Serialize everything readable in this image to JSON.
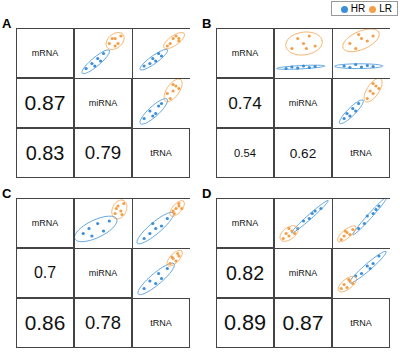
{
  "chart_data": [
    {
      "type": "scatter_matrix",
      "title": "A",
      "variables": [
        "mRNA",
        "miRNA",
        "tRNA"
      ],
      "tick_labels": false,
      "correlations": [
        {
          "x": "mRNA",
          "y": "miRNA",
          "value": 0.87
        },
        {
          "x": "mRNA",
          "y": "tRNA",
          "value": 0.83
        },
        {
          "x": "miRNA",
          "y": "tRNA",
          "value": 0.79
        }
      ],
      "plots": [
        {
          "x": "miRNA",
          "y": "mRNA",
          "xlim": [
            0,
            10
          ],
          "ylim": [
            0,
            10
          ],
          "series": [
            {
              "name": "HR",
              "color": "#3b8fd8",
              "points": [
                [
                  2,
                  2
                ],
                [
                  3,
                  3
                ],
                [
                  3.5,
                  2.5
                ],
                [
                  4,
                  4
                ],
                [
                  4.5,
                  3.5
                ],
                [
                  5,
                  5
                ]
              ]
            },
            {
              "name": "LR",
              "color": "#f4a048",
              "points": [
                [
                  6,
                  7
                ],
                [
                  7,
                  8
                ],
                [
                  7.5,
                  7
                ],
                [
                  8,
                  8.5
                ],
                [
                  6.5,
                  8
                ],
                [
                  7,
                  6.5
                ]
              ]
            }
          ]
        },
        {
          "x": "tRNA",
          "y": "mRNA",
          "xlim": [
            0,
            10
          ],
          "ylim": [
            0,
            10
          ],
          "series": [
            {
              "name": "HR",
              "color": "#3b8fd8",
              "points": [
                [
                  2,
                  2.5
                ],
                [
                  3,
                  3
                ],
                [
                  3.5,
                  4
                ],
                [
                  4,
                  3.5
                ],
                [
                  5,
                  4.5
                ],
                [
                  4.5,
                  5
                ]
              ]
            },
            {
              "name": "LR",
              "color": "#f4a048",
              "points": [
                [
                  6.5,
                  7
                ],
                [
                  7,
                  8
                ],
                [
                  8,
                  7.5
                ],
                [
                  7.5,
                  8.5
                ],
                [
                  6,
                  6.5
                ],
                [
                  8,
                  8
                ]
              ]
            }
          ]
        },
        {
          "x": "tRNA",
          "y": "miRNA",
          "xlim": [
            0,
            10
          ],
          "ylim": [
            0,
            10
          ],
          "series": [
            {
              "name": "HR",
              "color": "#3b8fd8",
              "points": [
                [
                  2,
                  2
                ],
                [
                  3,
                  3.5
                ],
                [
                  4,
                  3
                ],
                [
                  4.5,
                  4.5
                ],
                [
                  5,
                  5
                ],
                [
                  3.5,
                  2.5
                ]
              ]
            },
            {
              "name": "LR",
              "color": "#f4a048",
              "points": [
                [
                  6,
                  7
                ],
                [
                  7,
                  7.5
                ],
                [
                  7.5,
                  8.5
                ],
                [
                  8,
                  8
                ],
                [
                  6.5,
                  6
                ],
                [
                  7,
                  8.8
                ]
              ]
            }
          ]
        }
      ]
    },
    {
      "type": "scatter_matrix",
      "title": "B",
      "variables": [
        "mRNA",
        "miRNA",
        "tRNA"
      ],
      "tick_labels": false,
      "legend": "top-right",
      "correlations": [
        {
          "x": "mRNA",
          "y": "miRNA",
          "value": 0.74
        },
        {
          "x": "mRNA",
          "y": "tRNA",
          "value": 0.54
        },
        {
          "x": "miRNA",
          "y": "tRNA",
          "value": 0.62
        }
      ],
      "plots": [
        {
          "x": "miRNA",
          "y": "mRNA",
          "xlim": [
            0,
            10
          ],
          "ylim": [
            0,
            10
          ],
          "series": [
            {
              "name": "HR",
              "color": "#3b8fd8",
              "points": [
                [
                  2,
                  2
                ],
                [
                  3,
                  2.3
                ],
                [
                  4,
                  2.1
                ],
                [
                  5,
                  2.5
                ],
                [
                  6,
                  2.2
                ],
                [
                  7,
                  2.4
                ]
              ]
            },
            {
              "name": "LR",
              "color": "#f4a048",
              "points": [
                [
                  3,
                  6
                ],
                [
                  4,
                  8
                ],
                [
                  5,
                  7
                ],
                [
                  6,
                  8.5
                ],
                [
                  7,
                  6.5
                ],
                [
                  5.5,
                  6
                ]
              ]
            }
          ]
        },
        {
          "x": "tRNA",
          "y": "mRNA",
          "xlim": [
            0,
            10
          ],
          "ylim": [
            0,
            10
          ],
          "series": [
            {
              "name": "HR",
              "color": "#3b8fd8",
              "points": [
                [
                  2,
                  2.5
                ],
                [
                  3,
                  2.2
                ],
                [
                  4,
                  2.8
                ],
                [
                  5,
                  2.3
                ],
                [
                  6,
                  2.6
                ],
                [
                  7,
                  2.4
                ]
              ]
            },
            {
              "name": "LR",
              "color": "#f4a048",
              "points": [
                [
                  3,
                  7
                ],
                [
                  4,
                  6
                ],
                [
                  5,
                  8
                ],
                [
                  6,
                  7.5
                ],
                [
                  7,
                  8.5
                ],
                [
                  4.5,
                  8.8
                ]
              ]
            }
          ]
        },
        {
          "x": "tRNA",
          "y": "miRNA",
          "xlim": [
            0,
            10
          ],
          "ylim": [
            0,
            10
          ],
          "series": [
            {
              "name": "HR",
              "color": "#3b8fd8",
              "points": [
                [
                  2,
                  2
                ],
                [
                  2.5,
                  3
                ],
                [
                  3,
                  2.5
                ],
                [
                  3.5,
                  4
                ],
                [
                  4,
                  3.5
                ],
                [
                  4.5,
                  5
                ]
              ]
            },
            {
              "name": "LR",
              "color": "#f4a048",
              "points": [
                [
                  6,
                  6
                ],
                [
                  6.5,
                  7.5
                ],
                [
                  7,
                  7
                ],
                [
                  7.5,
                  8.5
                ],
                [
                  8,
                  8
                ],
                [
                  7,
                  9
                ]
              ]
            }
          ]
        }
      ]
    },
    {
      "type": "scatter_matrix",
      "title": "C",
      "variables": [
        "mRNA",
        "miRNA",
        "tRNA"
      ],
      "tick_labels": false,
      "correlations": [
        {
          "x": "mRNA",
          "y": "miRNA",
          "value": 0.7
        },
        {
          "x": "mRNA",
          "y": "tRNA",
          "value": 0.86
        },
        {
          "x": "miRNA",
          "y": "tRNA",
          "value": 0.78
        }
      ],
      "plots": [
        {
          "x": "miRNA",
          "y": "mRNA",
          "xlim": [
            0,
            10
          ],
          "ylim": [
            0,
            10
          ],
          "series": [
            {
              "name": "HR",
              "color": "#3b8fd8",
              "points": [
                [
                  1.5,
                  3
                ],
                [
                  2.5,
                  4
                ],
                [
                  3,
                  2.5
                ],
                [
                  4,
                  5
                ],
                [
                  5,
                  3.5
                ],
                [
                  6,
                  5.5
                ]
              ]
            },
            {
              "name": "LR",
              "color": "#f4a048",
              "points": [
                [
                  7,
                  7
                ],
                [
                  7.5,
                  8.5
                ],
                [
                  8,
                  7.5
                ],
                [
                  8.5,
                  9
                ],
                [
                  7.2,
                  8
                ],
                [
                  8.2,
                  6.8
                ]
              ]
            }
          ]
        },
        {
          "x": "tRNA",
          "y": "mRNA",
          "xlim": [
            0,
            10
          ],
          "ylim": [
            0,
            10
          ],
          "series": [
            {
              "name": "HR",
              "color": "#3b8fd8",
              "points": [
                [
                  2,
                  2
                ],
                [
                  3,
                  3
                ],
                [
                  4,
                  4
                ],
                [
                  5,
                  4.5
                ],
                [
                  3.5,
                  5
                ],
                [
                  6,
                  6
                ]
              ]
            },
            {
              "name": "LR",
              "color": "#f4a048",
              "points": [
                [
                  7,
                  7.5
                ],
                [
                  7.5,
                  8
                ],
                [
                  8,
                  8.5
                ],
                [
                  8.5,
                  8
                ],
                [
                  7.2,
                  7
                ],
                [
                  8,
                  9
                ]
              ]
            }
          ]
        },
        {
          "x": "tRNA",
          "y": "miRNA",
          "xlim": [
            0,
            10
          ],
          "ylim": [
            0,
            10
          ],
          "series": [
            {
              "name": "HR",
              "color": "#3b8fd8",
              "points": [
                [
                  2,
                  2
                ],
                [
                  3,
                  3.5
                ],
                [
                  4,
                  3
                ],
                [
                  4.5,
                  5
                ],
                [
                  5,
                  4
                ],
                [
                  6,
                  6
                ]
              ]
            },
            {
              "name": "LR",
              "color": "#f4a048",
              "points": [
                [
                  6.5,
                  7
                ],
                [
                  7,
                  8
                ],
                [
                  7.5,
                  7.5
                ],
                [
                  8,
                  8.5
                ],
                [
                  6.8,
                  8.3
                ],
                [
                  7.8,
                  9
                ]
              ]
            }
          ]
        }
      ]
    },
    {
      "type": "scatter_matrix",
      "title": "D",
      "variables": [
        "mRNA",
        "miRNA",
        "tRNA"
      ],
      "tick_labels": false,
      "correlations": [
        {
          "x": "mRNA",
          "y": "miRNA",
          "value": 0.82
        },
        {
          "x": "mRNA",
          "y": "tRNA",
          "value": 0.89
        },
        {
          "x": "miRNA",
          "y": "tRNA",
          "value": 0.87
        }
      ],
      "plots": [
        {
          "x": "miRNA",
          "y": "mRNA",
          "xlim": [
            0,
            10
          ],
          "ylim": [
            0,
            10
          ],
          "series": [
            {
              "name": "HR",
              "color": "#3b8fd8",
              "points": [
                [
                  4,
                  4
                ],
                [
                  5,
                  5.5
                ],
                [
                  6,
                  6
                ],
                [
                  7,
                  7.5
                ],
                [
                  8,
                  8
                ],
                [
                  6.5,
                  7
                ]
              ]
            },
            {
              "name": "LR",
              "color": "#f4a048",
              "points": [
                [
                  1.5,
                  2
                ],
                [
                  2,
                  3
                ],
                [
                  2.5,
                  2.5
                ],
                [
                  3,
                  3.5
                ],
                [
                  3.5,
                  3
                ],
                [
                  2.5,
                  4
                ]
              ]
            }
          ]
        },
        {
          "x": "tRNA",
          "y": "mRNA",
          "xlim": [
            0,
            10
          ],
          "ylim": [
            0,
            10
          ],
          "series": [
            {
              "name": "HR",
              "color": "#3b8fd8",
              "points": [
                [
                  4.5,
                  4
                ],
                [
                  5.5,
                  5
                ],
                [
                  6,
                  6.5
                ],
                [
                  7,
                  7
                ],
                [
                  8,
                  8.5
                ],
                [
                  7.5,
                  7.8
                ]
              ]
            },
            {
              "name": "LR",
              "color": "#f4a048",
              "points": [
                [
                  1.5,
                  1.8
                ],
                [
                  2,
                  2.5
                ],
                [
                  2.5,
                  3.2
                ],
                [
                  3,
                  2.8
                ],
                [
                  3.5,
                  3.8
                ],
                [
                  2.2,
                  3.5
                ]
              ]
            }
          ]
        },
        {
          "x": "tRNA",
          "y": "miRNA",
          "xlim": [
            0,
            10
          ],
          "ylim": [
            0,
            10
          ],
          "series": [
            {
              "name": "HR",
              "color": "#3b8fd8",
              "points": [
                [
                  4,
                  4.5
                ],
                [
                  5,
                  5
                ],
                [
                  6,
                  6.5
                ],
                [
                  7,
                  7
                ],
                [
                  8,
                  8.5
                ],
                [
                  6.5,
                  6
                ]
              ]
            },
            {
              "name": "LR",
              "color": "#f4a048",
              "points": [
                [
                  1.5,
                  2
                ],
                [
                  2,
                  2.8
                ],
                [
                  2.5,
                  2.2
                ],
                [
                  3,
                  3.5
                ],
                [
                  3.5,
                  3
                ],
                [
                  2.8,
                  3.8
                ]
              ]
            }
          ]
        }
      ]
    }
  ]
}
